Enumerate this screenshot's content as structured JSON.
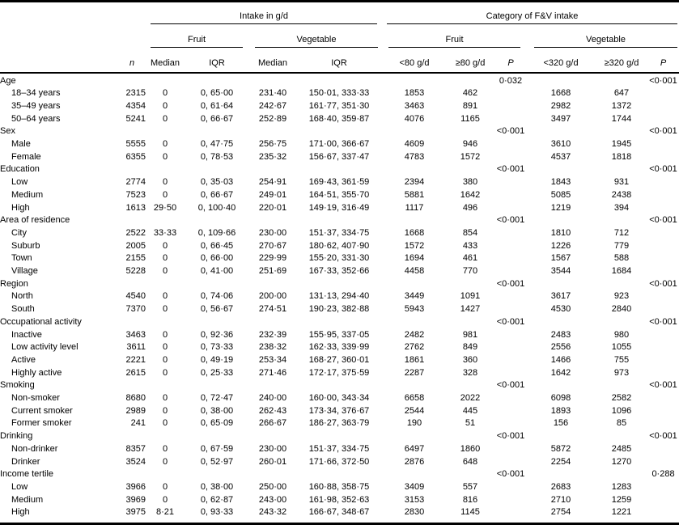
{
  "table": {
    "group_headers": {
      "intake": "Intake in g/d",
      "category": "Category of F&V intake",
      "fruit_intake": "Fruit",
      "vegetable_intake": "Vegetable",
      "fruit_category": "Fruit",
      "vegetable_category": "Vegetable"
    },
    "columns": {
      "n": "n",
      "fruit_median": "Median",
      "fruit_iqr": "IQR",
      "veg_median": "Median",
      "veg_iqr": "IQR",
      "fruit_lt": "<80 g/d",
      "fruit_ge": "≥80 g/d",
      "fruit_p": "P",
      "veg_lt": "<320 g/d",
      "veg_ge": "≥320 g/d",
      "veg_p": "P"
    },
    "sections": [
      {
        "label": "Age",
        "fruit_p": "0·032",
        "veg_p": "<0·001",
        "rows": [
          {
            "label": "18–34 years",
            "n": "2315",
            "fruit_median": "0",
            "fruit_iqr": "0, 65·00",
            "veg_median": "231·40",
            "veg_iqr": "150·01, 333·33",
            "fruit_lt": "1853",
            "fruit_ge": "462",
            "veg_lt": "1668",
            "veg_ge": "647"
          },
          {
            "label": "35–49 years",
            "n": "4354",
            "fruit_median": "0",
            "fruit_iqr": "0, 61·64",
            "veg_median": "242·67",
            "veg_iqr": "161·77, 351·30",
            "fruit_lt": "3463",
            "fruit_ge": "891",
            "veg_lt": "2982",
            "veg_ge": "1372"
          },
          {
            "label": "50–64 years",
            "n": "5241",
            "fruit_median": "0",
            "fruit_iqr": "0, 66·67",
            "veg_median": "252·89",
            "veg_iqr": "168·40, 359·87",
            "fruit_lt": "4076",
            "fruit_ge": "1165",
            "veg_lt": "3497",
            "veg_ge": "1744"
          }
        ]
      },
      {
        "label": "Sex",
        "fruit_p": "<0·001",
        "veg_p": "<0·001",
        "rows": [
          {
            "label": "Male",
            "n": "5555",
            "fruit_median": "0",
            "fruit_iqr": "0, 47·75",
            "veg_median": "256·75",
            "veg_iqr": "171·00, 366·67",
            "fruit_lt": "4609",
            "fruit_ge": "946",
            "veg_lt": "3610",
            "veg_ge": "1945"
          },
          {
            "label": "Female",
            "n": "6355",
            "fruit_median": "0",
            "fruit_iqr": "0, 78·53",
            "veg_median": "235·32",
            "veg_iqr": "156·67, 337·47",
            "fruit_lt": "4783",
            "fruit_ge": "1572",
            "veg_lt": "4537",
            "veg_ge": "1818"
          }
        ]
      },
      {
        "label": "Education",
        "fruit_p": "<0·001",
        "veg_p": "<0·001",
        "rows": [
          {
            "label": "Low",
            "n": "2774",
            "fruit_median": "0",
            "fruit_iqr": "0, 35·03",
            "veg_median": "254·91",
            "veg_iqr": "169·43, 361·59",
            "fruit_lt": "2394",
            "fruit_ge": "380",
            "veg_lt": "1843",
            "veg_ge": "931"
          },
          {
            "label": "Medium",
            "n": "7523",
            "fruit_median": "0",
            "fruit_iqr": "0, 66·67",
            "veg_median": "249·01",
            "veg_iqr": "164·51, 355·70",
            "fruit_lt": "5881",
            "fruit_ge": "1642",
            "veg_lt": "5085",
            "veg_ge": "2438"
          },
          {
            "label": "High",
            "n": "1613",
            "fruit_median": "29·50",
            "fruit_iqr": "0, 100·40",
            "veg_median": "220·01",
            "veg_iqr": "149·19, 316·49",
            "fruit_lt": "1117",
            "fruit_ge": "496",
            "veg_lt": "1219",
            "veg_ge": "394"
          }
        ]
      },
      {
        "label": "Area of residence",
        "fruit_p": "<0·001",
        "veg_p": "<0·001",
        "rows": [
          {
            "label": "City",
            "n": "2522",
            "fruit_median": "33·33",
            "fruit_iqr": "0, 109·66",
            "veg_median": "230·00",
            "veg_iqr": "151·37, 334·75",
            "fruit_lt": "1668",
            "fruit_ge": "854",
            "veg_lt": "1810",
            "veg_ge": "712"
          },
          {
            "label": "Suburb",
            "n": "2005",
            "fruit_median": "0",
            "fruit_iqr": "0, 66·45",
            "veg_median": "270·67",
            "veg_iqr": "180·62, 407·90",
            "fruit_lt": "1572",
            "fruit_ge": "433",
            "veg_lt": "1226",
            "veg_ge": "779"
          },
          {
            "label": "Town",
            "n": "2155",
            "fruit_median": "0",
            "fruit_iqr": "0, 66·00",
            "veg_median": "229·99",
            "veg_iqr": "155·20, 331·30",
            "fruit_lt": "1694",
            "fruit_ge": "461",
            "veg_lt": "1567",
            "veg_ge": "588"
          },
          {
            "label": "Village",
            "n": "5228",
            "fruit_median": "0",
            "fruit_iqr": "0, 41·00",
            "veg_median": "251·69",
            "veg_iqr": "167·33, 352·66",
            "fruit_lt": "4458",
            "fruit_ge": "770",
            "veg_lt": "3544",
            "veg_ge": "1684"
          }
        ]
      },
      {
        "label": "Region",
        "fruit_p": "<0·001",
        "veg_p": "<0·001",
        "rows": [
          {
            "label": "North",
            "n": "4540",
            "fruit_median": "0",
            "fruit_iqr": "0, 74·06",
            "veg_median": "200·00",
            "veg_iqr": "131·13, 294·40",
            "fruit_lt": "3449",
            "fruit_ge": "1091",
            "veg_lt": "3617",
            "veg_ge": "923"
          },
          {
            "label": "South",
            "n": "7370",
            "fruit_median": "0",
            "fruit_iqr": "0, 56·67",
            "veg_median": "274·51",
            "veg_iqr": "190·23, 382·88",
            "fruit_lt": "5943",
            "fruit_ge": "1427",
            "veg_lt": "4530",
            "veg_ge": "2840"
          }
        ]
      },
      {
        "label": "Occupational activity",
        "fruit_p": "<0·001",
        "veg_p": "<0·001",
        "rows": [
          {
            "label": "Inactive",
            "n": "3463",
            "fruit_median": "0",
            "fruit_iqr": "0, 92·36",
            "veg_median": "232·39",
            "veg_iqr": "155·95, 337·05",
            "fruit_lt": "2482",
            "fruit_ge": "981",
            "veg_lt": "2483",
            "veg_ge": "980"
          },
          {
            "label": "Low activity level",
            "n": "3611",
            "fruit_median": "0",
            "fruit_iqr": "0, 73·33",
            "veg_median": "238·32",
            "veg_iqr": "162·33, 339·99",
            "fruit_lt": "2762",
            "fruit_ge": "849",
            "veg_lt": "2556",
            "veg_ge": "1055"
          },
          {
            "label": "Active",
            "n": "2221",
            "fruit_median": "0",
            "fruit_iqr": "0, 49·19",
            "veg_median": "253·34",
            "veg_iqr": "168·27, 360·01",
            "fruit_lt": "1861",
            "fruit_ge": "360",
            "veg_lt": "1466",
            "veg_ge": "755"
          },
          {
            "label": "Highly active",
            "n": "2615",
            "fruit_median": "0",
            "fruit_iqr": "0, 25·33",
            "veg_median": "271·46",
            "veg_iqr": "172·17, 375·59",
            "fruit_lt": "2287",
            "fruit_ge": "328",
            "veg_lt": "1642",
            "veg_ge": "973"
          }
        ]
      },
      {
        "label": "Smoking",
        "fruit_p": "<0·001",
        "veg_p": "<0·001",
        "rows": [
          {
            "label": "Non-smoker",
            "n": "8680",
            "fruit_median": "0",
            "fruit_iqr": "0, 72·47",
            "veg_median": "240·00",
            "veg_iqr": "160·00, 343·34",
            "fruit_lt": "6658",
            "fruit_ge": "2022",
            "veg_lt": "6098",
            "veg_ge": "2582"
          },
          {
            "label": "Current smoker",
            "n": "2989",
            "fruit_median": "0",
            "fruit_iqr": "0, 38·00",
            "veg_median": "262·43",
            "veg_iqr": "173·34, 376·67",
            "fruit_lt": "2544",
            "fruit_ge": "445",
            "veg_lt": "1893",
            "veg_ge": "1096"
          },
          {
            "label": "Former smoker",
            "n": "241",
            "fruit_median": "0",
            "fruit_iqr": "0, 65·09",
            "veg_median": "266·67",
            "veg_iqr": "186·27, 363·79",
            "fruit_lt": "190",
            "fruit_ge": "51",
            "veg_lt": "156",
            "veg_ge": "85"
          }
        ]
      },
      {
        "label": "Drinking",
        "fruit_p": "<0·001",
        "veg_p": "<0·001",
        "rows": [
          {
            "label": "Non-drinker",
            "n": "8357",
            "fruit_median": "0",
            "fruit_iqr": "0, 67·59",
            "veg_median": "230·00",
            "veg_iqr": "151·37, 334·75",
            "fruit_lt": "6497",
            "fruit_ge": "1860",
            "veg_lt": "5872",
            "veg_ge": "2485"
          },
          {
            "label": "Drinker",
            "n": "3524",
            "fruit_median": "0",
            "fruit_iqr": "0, 52·97",
            "veg_median": "260·01",
            "veg_iqr": "171·66, 372·50",
            "fruit_lt": "2876",
            "fruit_ge": "648",
            "veg_lt": "2254",
            "veg_ge": "1270"
          }
        ]
      },
      {
        "label": "Income tertile",
        "fruit_p": "<0·001",
        "veg_p": "0·288",
        "rows": [
          {
            "label": "Low",
            "n": "3966",
            "fruit_median": "0",
            "fruit_iqr": "0, 38·00",
            "veg_median": "250·00",
            "veg_iqr": "160·88, 358·75",
            "fruit_lt": "3409",
            "fruit_ge": "557",
            "veg_lt": "2683",
            "veg_ge": "1283"
          },
          {
            "label": "Medium",
            "n": "3969",
            "fruit_median": "0",
            "fruit_iqr": "0, 62·87",
            "veg_median": "243·00",
            "veg_iqr": "161·98, 352·63",
            "fruit_lt": "3153",
            "fruit_ge": "816",
            "veg_lt": "2710",
            "veg_ge": "1259"
          },
          {
            "label": "High",
            "n": "3975",
            "fruit_median": "8·21",
            "fruit_iqr": "0, 93·33",
            "veg_median": "243·32",
            "veg_iqr": "166·67, 348·67",
            "fruit_lt": "2830",
            "fruit_ge": "1145",
            "veg_lt": "2754",
            "veg_ge": "1221"
          }
        ]
      }
    ]
  }
}
